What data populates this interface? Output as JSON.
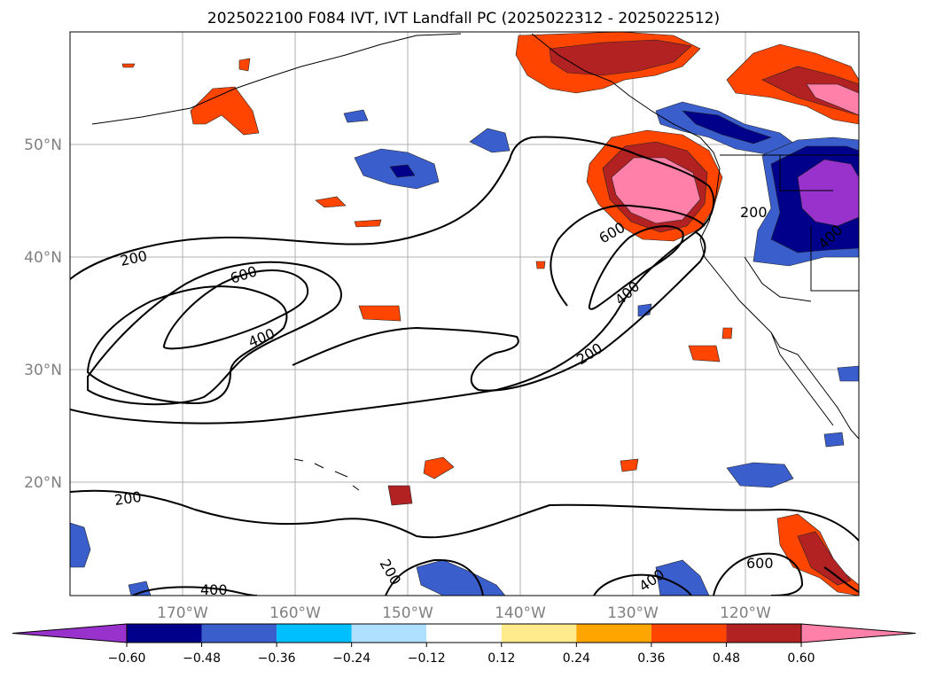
{
  "title": "2025022100 F084 IVT, IVT Landfall PC (2025022312 - 2025022512)",
  "lon_labels": [
    "170°W",
    "160°W",
    "150°W",
    "140°W",
    "130°W",
    "120°W"
  ],
  "lat_labels": [
    "50°N",
    "40°N",
    "30°N",
    "20°N"
  ],
  "contour_labels": [
    {
      "text": "200",
      "angle": -12
    },
    {
      "text": "600",
      "angle": -18
    },
    {
      "text": "400",
      "angle": -22
    },
    {
      "text": "600",
      "angle": -30
    },
    {
      "text": "400",
      "angle": -42
    },
    {
      "text": "200",
      "angle": -32
    },
    {
      "text": "200",
      "angle": -8
    },
    {
      "text": "200",
      "angle": 0
    },
    {
      "text": "400",
      "angle": 0
    },
    {
      "text": "200",
      "angle": 60
    },
    {
      "text": "400",
      "angle": -35
    },
    {
      "text": "600",
      "angle": 0
    },
    {
      "text": "400",
      "angle": -45
    }
  ],
  "colorbar": {
    "ticks": [
      "−0.60",
      "−0.48",
      "−0.36",
      "−0.24",
      "−0.12",
      "0.12",
      "0.24",
      "0.36",
      "0.48",
      "0.60"
    ],
    "colors": [
      "#9932cc",
      "#00008b",
      "#3a5fcd",
      "#00bfff",
      "#b0e0ff",
      "#ffffff",
      "#ffeb8c",
      "#ffa500",
      "#ff4500",
      "#b22222",
      "#ff80a8",
      "#ff80a8"
    ]
  },
  "colors": {
    "neg_060": "#9932cc",
    "neg_048": "#00008b",
    "neg_036": "#3a5fcd",
    "neg_024": "#00bfff",
    "neg_012": "#b0e0ff",
    "pos_012": "#ffeb8c",
    "pos_024": "#ffa500",
    "pos_036": "#ff4500",
    "pos_048": "#b22222",
    "pos_060": "#ff80a8"
  }
}
